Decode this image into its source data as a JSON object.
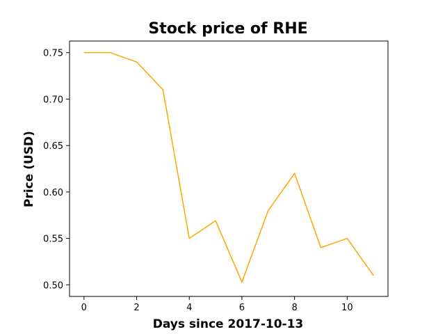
{
  "chart_data": {
    "type": "line",
    "title": "Stock price of RHE",
    "xlabel": "Days since 2017-10-13",
    "ylabel": "Price (USD)",
    "xlim": [
      -0.55,
      11.55
    ],
    "ylim": [
      0.4875,
      0.7625
    ],
    "x_ticks": [
      0,
      2,
      4,
      6,
      8,
      10
    ],
    "x_tick_labels": [
      "0",
      "2",
      "4",
      "6",
      "8",
      "10"
    ],
    "y_ticks": [
      0.5,
      0.55,
      0.6,
      0.65,
      0.7,
      0.75
    ],
    "y_tick_labels": [
      "0.50",
      "0.55",
      "0.60",
      "0.65",
      "0.70",
      "0.75"
    ],
    "grid": false,
    "series": [
      {
        "color": "#ffa500",
        "x": [
          0,
          1,
          2,
          3,
          4,
          5,
          6,
          7,
          8,
          9,
          10,
          11
        ],
        "values": [
          0.75,
          0.75,
          0.74,
          0.71,
          0.55,
          0.569,
          0.503,
          0.58,
          0.62,
          0.54,
          0.55,
          0.51
        ]
      }
    ]
  }
}
